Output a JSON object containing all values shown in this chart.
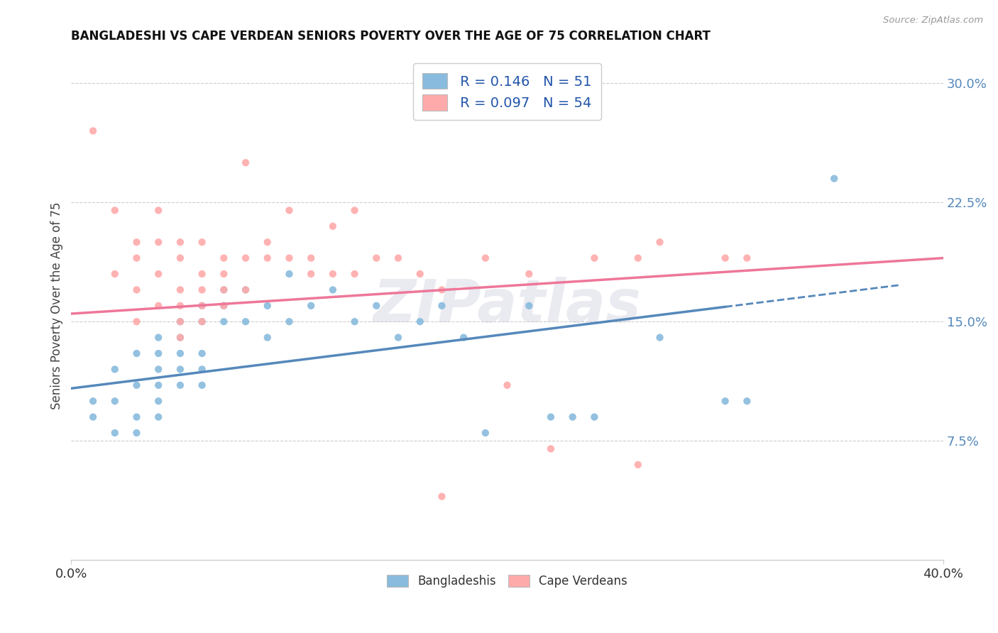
{
  "title": "BANGLADESHI VS CAPE VERDEAN SENIORS POVERTY OVER THE AGE OF 75 CORRELATION CHART",
  "source": "Source: ZipAtlas.com",
  "ylabel": "Seniors Poverty Over the Age of 75",
  "ylim": [
    0.0,
    0.32
  ],
  "xlim": [
    0.0,
    0.4
  ],
  "ytick_vals": [
    0.075,
    0.15,
    0.225,
    0.3
  ],
  "ytick_labels": [
    "7.5%",
    "15.0%",
    "22.5%",
    "30.0%"
  ],
  "xtick_vals": [
    0.0,
    0.4
  ],
  "xtick_labels": [
    "0.0%",
    "40.0%"
  ],
  "r_bangladeshi": 0.146,
  "n_bangladeshi": 51,
  "r_cape_verdean": 0.097,
  "n_cape_verdean": 54,
  "blue_color": "#88BBDD",
  "pink_color": "#FFAAAA",
  "trend_blue": "#5588BB",
  "trend_pink": "#EE7799",
  "watermark_color": "#CCCCDD",
  "blue_scatter": [
    [
      0.01,
      0.1
    ],
    [
      0.01,
      0.09
    ],
    [
      0.02,
      0.12
    ],
    [
      0.02,
      0.1
    ],
    [
      0.02,
      0.08
    ],
    [
      0.03,
      0.13
    ],
    [
      0.03,
      0.11
    ],
    [
      0.03,
      0.09
    ],
    [
      0.03,
      0.08
    ],
    [
      0.04,
      0.14
    ],
    [
      0.04,
      0.13
    ],
    [
      0.04,
      0.12
    ],
    [
      0.04,
      0.11
    ],
    [
      0.04,
      0.1
    ],
    [
      0.04,
      0.09
    ],
    [
      0.05,
      0.15
    ],
    [
      0.05,
      0.14
    ],
    [
      0.05,
      0.13
    ],
    [
      0.05,
      0.12
    ],
    [
      0.05,
      0.11
    ],
    [
      0.06,
      0.16
    ],
    [
      0.06,
      0.15
    ],
    [
      0.06,
      0.13
    ],
    [
      0.06,
      0.12
    ],
    [
      0.06,
      0.11
    ],
    [
      0.07,
      0.17
    ],
    [
      0.07,
      0.16
    ],
    [
      0.07,
      0.15
    ],
    [
      0.08,
      0.17
    ],
    [
      0.08,
      0.15
    ],
    [
      0.09,
      0.16
    ],
    [
      0.09,
      0.14
    ],
    [
      0.1,
      0.18
    ],
    [
      0.1,
      0.15
    ],
    [
      0.11,
      0.16
    ],
    [
      0.12,
      0.17
    ],
    [
      0.13,
      0.15
    ],
    [
      0.14,
      0.16
    ],
    [
      0.15,
      0.14
    ],
    [
      0.16,
      0.15
    ],
    [
      0.17,
      0.16
    ],
    [
      0.18,
      0.14
    ],
    [
      0.19,
      0.08
    ],
    [
      0.21,
      0.16
    ],
    [
      0.22,
      0.09
    ],
    [
      0.23,
      0.09
    ],
    [
      0.24,
      0.09
    ],
    [
      0.27,
      0.14
    ],
    [
      0.3,
      0.1
    ],
    [
      0.31,
      0.1
    ],
    [
      0.35,
      0.24
    ]
  ],
  "pink_scatter": [
    [
      0.01,
      0.27
    ],
    [
      0.02,
      0.22
    ],
    [
      0.02,
      0.18
    ],
    [
      0.03,
      0.2
    ],
    [
      0.03,
      0.19
    ],
    [
      0.03,
      0.17
    ],
    [
      0.03,
      0.15
    ],
    [
      0.04,
      0.22
    ],
    [
      0.04,
      0.2
    ],
    [
      0.04,
      0.18
    ],
    [
      0.04,
      0.16
    ],
    [
      0.05,
      0.2
    ],
    [
      0.05,
      0.19
    ],
    [
      0.05,
      0.17
    ],
    [
      0.05,
      0.16
    ],
    [
      0.05,
      0.15
    ],
    [
      0.05,
      0.14
    ],
    [
      0.06,
      0.2
    ],
    [
      0.06,
      0.18
    ],
    [
      0.06,
      0.17
    ],
    [
      0.06,
      0.16
    ],
    [
      0.06,
      0.15
    ],
    [
      0.07,
      0.19
    ],
    [
      0.07,
      0.18
    ],
    [
      0.07,
      0.17
    ],
    [
      0.07,
      0.16
    ],
    [
      0.08,
      0.25
    ],
    [
      0.08,
      0.19
    ],
    [
      0.08,
      0.17
    ],
    [
      0.09,
      0.2
    ],
    [
      0.09,
      0.19
    ],
    [
      0.1,
      0.22
    ],
    [
      0.1,
      0.19
    ],
    [
      0.11,
      0.19
    ],
    [
      0.11,
      0.18
    ],
    [
      0.12,
      0.21
    ],
    [
      0.12,
      0.18
    ],
    [
      0.13,
      0.22
    ],
    [
      0.13,
      0.18
    ],
    [
      0.14,
      0.19
    ],
    [
      0.15,
      0.19
    ],
    [
      0.16,
      0.18
    ],
    [
      0.17,
      0.17
    ],
    [
      0.19,
      0.19
    ],
    [
      0.2,
      0.11
    ],
    [
      0.21,
      0.18
    ],
    [
      0.22,
      0.07
    ],
    [
      0.24,
      0.19
    ],
    [
      0.26,
      0.06
    ],
    [
      0.27,
      0.2
    ],
    [
      0.3,
      0.19
    ],
    [
      0.31,
      0.19
    ],
    [
      0.17,
      0.04
    ],
    [
      0.26,
      0.19
    ]
  ],
  "blue_trend_x": [
    0.0,
    0.35
  ],
  "blue_trend_solid_end": 0.3,
  "pink_trend_x": [
    0.0,
    0.4
  ]
}
